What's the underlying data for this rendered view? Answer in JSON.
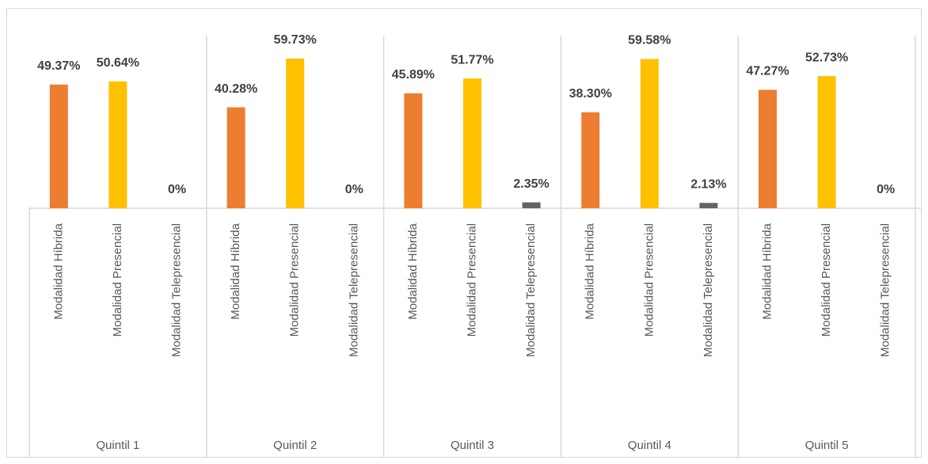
{
  "chart_data": {
    "type": "bar",
    "categories": [
      "Quintil 1",
      "Quintil 2",
      "Quintil 3",
      "Quintil 4",
      "Quintil 5"
    ],
    "series": [
      {
        "name": "Modalidad Híbrida",
        "color": "#ed7d31",
        "values": [
          49.37,
          40.28,
          45.89,
          38.3,
          47.27
        ],
        "value_labels": [
          "49.37%",
          "40.28%",
          "45.89%",
          "38.30%",
          "47.27%"
        ]
      },
      {
        "name": "Modalidad Presencial",
        "color": "#ffc000",
        "values": [
          50.64,
          59.73,
          51.77,
          59.58,
          52.73
        ],
        "value_labels": [
          "50.64%",
          "59.73%",
          "51.77%",
          "59.58%",
          "52.73%"
        ]
      },
      {
        "name": "Modalidad Telepresencial",
        "color": "#636363",
        "values": [
          0,
          0,
          2.35,
          2.13,
          0
        ],
        "value_labels": [
          "0%",
          "0%",
          "2.35%",
          "2.13%",
          "0%"
        ]
      }
    ]
  }
}
